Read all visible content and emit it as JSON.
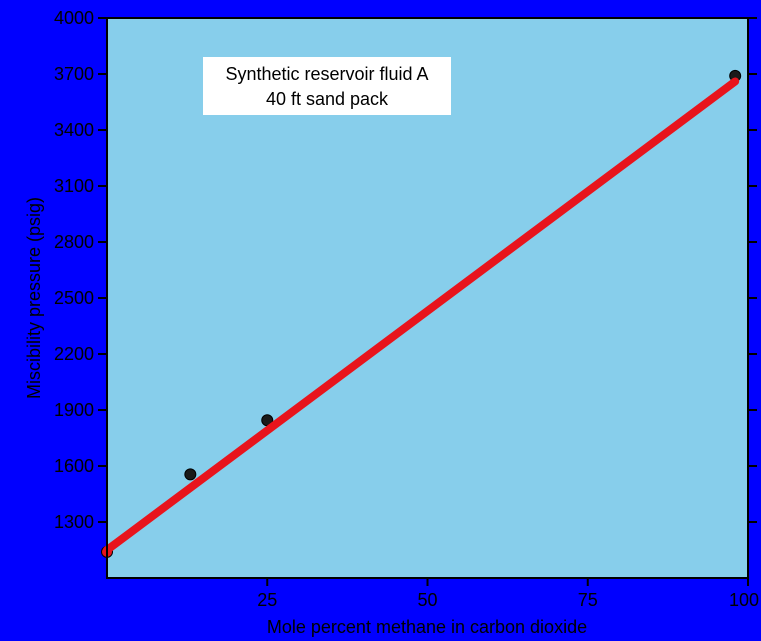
{
  "chart_data": {
    "type": "scatter",
    "xlabel": "Mole percent methane in carbon dioxide",
    "ylabel": "Miscibility pressure (psig)",
    "xlim": [
      0,
      100
    ],
    "ylim": [
      1000,
      4000
    ],
    "x_ticks": [
      25,
      50,
      75,
      100
    ],
    "x_tick_labels": [
      "25",
      "50",
      "75",
      "100"
    ],
    "y_ticks": [
      1300,
      1600,
      1900,
      2200,
      2500,
      2800,
      3100,
      3400,
      3700,
      4000
    ],
    "y_tick_labels": [
      "1300",
      "1600",
      "1900",
      "2200",
      "2500",
      "2800",
      "3100",
      "3400",
      "3700",
      "4000"
    ],
    "annotation_lines": [
      "Synthetic reservoir fluid A",
      "40 ft sand pack"
    ],
    "series": [
      {
        "kind": "points",
        "x": [
          0,
          13,
          25,
          98
        ],
        "y": [
          1140,
          1555,
          1845,
          3690
        ]
      },
      {
        "kind": "fit-line",
        "x": [
          0,
          98
        ],
        "y": [
          1150,
          3660
        ]
      }
    ],
    "grid": false,
    "legend": "none",
    "colors": {
      "background": "#0000ff",
      "plot_area": "#87ceeb",
      "fit_line": "#e8141c",
      "point": "#1a1a1a",
      "origin_point": "#e8141c"
    }
  }
}
